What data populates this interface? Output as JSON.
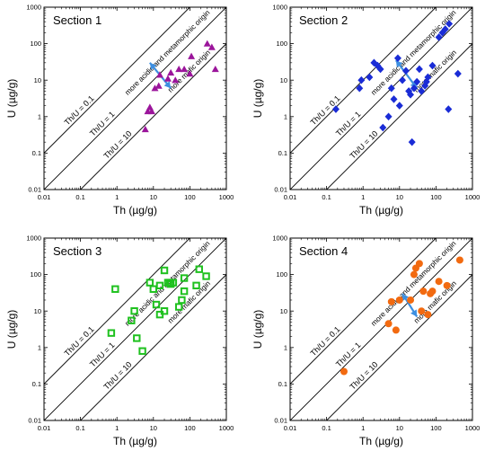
{
  "figure": {
    "type": "scatter-panels",
    "scale": "log-log"
  },
  "chart_data": [
    {
      "type": "scatter",
      "title": "Section 1",
      "xlabel": "Th (µg/g)",
      "ylabel": "U (µg/g)",
      "xscale": "log",
      "yscale": "log",
      "xlim": [
        0.01,
        1000
      ],
      "ylim": [
        0.01,
        1000
      ],
      "x_ticks": [
        "0.01",
        "0.1",
        "1",
        "10",
        "100",
        "1000"
      ],
      "y_ticks": [
        "0.01",
        "0.1",
        "1",
        "10",
        "100",
        "1000"
      ],
      "reference_lines": [
        {
          "label": "Th/U = 0.1",
          "ratio": 0.1
        },
        {
          "label": "Th/U = 1",
          "ratio": 1
        },
        {
          "label": "Th/U = 10",
          "ratio": 10
        }
      ],
      "annotations": [
        "more acidic and metamorphic origin",
        "more mafic origin"
      ],
      "marker": "triangle",
      "color": "#9b159b",
      "filled": true,
      "arrow": {
        "from": [
          8,
          30
        ],
        "to": [
          30,
          6
        ],
        "color": "#3d8fe0"
      },
      "points": [
        {
          "x": 6,
          "y": 0.45
        },
        {
          "x": 7,
          "y": 1.4
        },
        {
          "x": 8,
          "y": 1.8
        },
        {
          "x": 9,
          "y": 1.4
        },
        {
          "x": 11,
          "y": 6
        },
        {
          "x": 14,
          "y": 7
        },
        {
          "x": 15,
          "y": 14
        },
        {
          "x": 25,
          "y": 11
        },
        {
          "x": 30,
          "y": 16
        },
        {
          "x": 40,
          "y": 10
        },
        {
          "x": 50,
          "y": 20
        },
        {
          "x": 70,
          "y": 20
        },
        {
          "x": 100,
          "y": 15
        },
        {
          "x": 110,
          "y": 45
        },
        {
          "x": 300,
          "y": 100
        },
        {
          "x": 400,
          "y": 80
        },
        {
          "x": 500,
          "y": 20
        }
      ]
    },
    {
      "type": "scatter",
      "title": "Section 2",
      "xlabel": "Th (µg/g)",
      "ylabel": "U (µg/g)",
      "xscale": "log",
      "yscale": "log",
      "xlim": [
        0.01,
        1000
      ],
      "ylim": [
        0.01,
        1000
      ],
      "x_ticks": [
        "0.01",
        "0.1",
        "1",
        "10",
        "100",
        "1000"
      ],
      "y_ticks": [
        "0.01",
        "0.1",
        "1",
        "10",
        "100",
        "1000"
      ],
      "reference_lines": [
        {
          "label": "Th/U = 0.1",
          "ratio": 0.1
        },
        {
          "label": "Th/U = 1",
          "ratio": 1
        },
        {
          "label": "Th/U = 10",
          "ratio": 10
        }
      ],
      "annotations": [
        "more acidic and metamorphic origin",
        "more mafic origin"
      ],
      "marker": "diamond",
      "color": "#1a2cd6",
      "filled": true,
      "arrow": {
        "from": [
          8,
          35
        ],
        "to": [
          30,
          6
        ],
        "color": "#3d8fe0"
      },
      "points": [
        {
          "x": 0.18,
          "y": 1.6
        },
        {
          "x": 0.8,
          "y": 6
        },
        {
          "x": 0.9,
          "y": 10
        },
        {
          "x": 1.5,
          "y": 12
        },
        {
          "x": 2,
          "y": 30
        },
        {
          "x": 2.5,
          "y": 25
        },
        {
          "x": 3,
          "y": 20
        },
        {
          "x": 3.5,
          "y": 0.5
        },
        {
          "x": 5,
          "y": 1
        },
        {
          "x": 6,
          "y": 6
        },
        {
          "x": 7,
          "y": 3
        },
        {
          "x": 9,
          "y": 40
        },
        {
          "x": 10,
          "y": 2
        },
        {
          "x": 12,
          "y": 10
        },
        {
          "x": 15,
          "y": 18
        },
        {
          "x": 18,
          "y": 5
        },
        {
          "x": 20,
          "y": 4
        },
        {
          "x": 22,
          "y": 0.2
        },
        {
          "x": 25,
          "y": 6
        },
        {
          "x": 30,
          "y": 9
        },
        {
          "x": 35,
          "y": 20
        },
        {
          "x": 40,
          "y": 5
        },
        {
          "x": 50,
          "y": 7
        },
        {
          "x": 55,
          "y": 9
        },
        {
          "x": 60,
          "y": 12
        },
        {
          "x": 80,
          "y": 25
        },
        {
          "x": 120,
          "y": 150
        },
        {
          "x": 150,
          "y": 200
        },
        {
          "x": 180,
          "y": 250
        },
        {
          "x": 220,
          "y": 1.6
        },
        {
          "x": 230,
          "y": 350
        },
        {
          "x": 400,
          "y": 15
        }
      ]
    },
    {
      "type": "scatter",
      "title": "Section 3",
      "xlabel": "Th (µg/g)",
      "ylabel": "U (µg/g)",
      "xscale": "log",
      "yscale": "log",
      "xlim": [
        0.01,
        1000
      ],
      "ylim": [
        0.01,
        1000
      ],
      "x_ticks": [
        "0.01",
        "0.1",
        "1",
        "10",
        "100",
        "1000"
      ],
      "y_ticks": [
        "0.01",
        "0.1",
        "1",
        "10",
        "100",
        "1000"
      ],
      "reference_lines": [
        {
          "label": "Th/U = 0.1",
          "ratio": 0.1
        },
        {
          "label": "Th/U = 1",
          "ratio": 1
        },
        {
          "label": "Th/U = 10",
          "ratio": 10
        }
      ],
      "annotations": [
        "more acidic and metamorphic origin",
        "more mafic origin"
      ],
      "marker": "square",
      "color": "#1fc11f",
      "filled": false,
      "points": [
        {
          "x": 0.7,
          "y": 2.5
        },
        {
          "x": 0.9,
          "y": 40
        },
        {
          "x": 2.5,
          "y": 5.5
        },
        {
          "x": 3,
          "y": 10
        },
        {
          "x": 3.5,
          "y": 1.8
        },
        {
          "x": 5,
          "y": 0.8
        },
        {
          "x": 8,
          "y": 60
        },
        {
          "x": 10,
          "y": 40
        },
        {
          "x": 12,
          "y": 15
        },
        {
          "x": 15,
          "y": 8
        },
        {
          "x": 15,
          "y": 50
        },
        {
          "x": 20,
          "y": 10
        },
        {
          "x": 20,
          "y": 130
        },
        {
          "x": 25,
          "y": 60
        },
        {
          "x": 28,
          "y": 60
        },
        {
          "x": 30,
          "y": 55
        },
        {
          "x": 35,
          "y": 60
        },
        {
          "x": 50,
          "y": 13
        },
        {
          "x": 60,
          "y": 20
        },
        {
          "x": 70,
          "y": 35
        },
        {
          "x": 70,
          "y": 80
        },
        {
          "x": 150,
          "y": 50
        },
        {
          "x": 180,
          "y": 140
        },
        {
          "x": 280,
          "y": 90
        }
      ]
    },
    {
      "type": "scatter",
      "title": "Section 4",
      "xlabel": "Th (µg/g)",
      "ylabel": "U (µg/g)",
      "xscale": "log",
      "yscale": "log",
      "xlim": [
        0.01,
        1000
      ],
      "ylim": [
        0.01,
        1000
      ],
      "x_ticks": [
        "0.01",
        "0.1",
        "1",
        "10",
        "100",
        "1000"
      ],
      "y_ticks": [
        "0.01",
        "0.1",
        "1",
        "10",
        "100",
        "1000"
      ],
      "reference_lines": [
        {
          "label": "Th/U = 0.1",
          "ratio": 0.1
        },
        {
          "label": "Th/U = 1",
          "ratio": 1
        },
        {
          "label": "Th/U = 10",
          "ratio": 10
        }
      ],
      "annotations": [
        "more acidic and metamorphic origin",
        "more mafic origin"
      ],
      "marker": "circle",
      "color": "#f26a10",
      "filled": true,
      "arrow": {
        "from": [
          12,
          30
        ],
        "to": [
          30,
          7
        ],
        "color": "#3d8fe0"
      },
      "points": [
        {
          "x": 0.3,
          "y": 0.22
        },
        {
          "x": 5,
          "y": 4.5
        },
        {
          "x": 6,
          "y": 18
        },
        {
          "x": 8,
          "y": 3
        },
        {
          "x": 10,
          "y": 20
        },
        {
          "x": 20,
          "y": 20
        },
        {
          "x": 25,
          "y": 100
        },
        {
          "x": 28,
          "y": 150
        },
        {
          "x": 35,
          "y": 200
        },
        {
          "x": 40,
          "y": 10
        },
        {
          "x": 45,
          "y": 35
        },
        {
          "x": 60,
          "y": 8
        },
        {
          "x": 70,
          "y": 30
        },
        {
          "x": 80,
          "y": 35
        },
        {
          "x": 120,
          "y": 65
        },
        {
          "x": 200,
          "y": 50
        },
        {
          "x": 450,
          "y": 250
        }
      ]
    }
  ]
}
